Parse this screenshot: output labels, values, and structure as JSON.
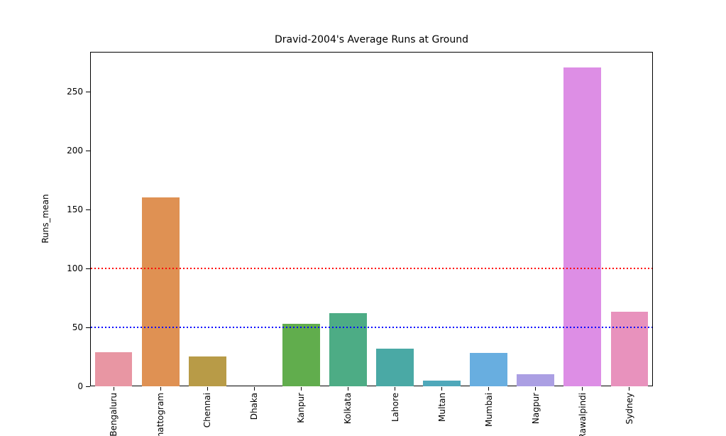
{
  "chart_data": {
    "type": "bar",
    "title": "Dravid-2004's Average Runs at Ground",
    "xlabel": "",
    "ylabel": "Runs_mean",
    "categories": [
      "Bengaluru",
      "Chattogram",
      "Chennai",
      "Dhaka",
      "Kanpur",
      "Kolkata",
      "Lahore",
      "Multan",
      "Mumbai",
      "Nagpur",
      "Rawalpindi",
      "Sydney"
    ],
    "values": [
      29,
      160,
      25,
      0,
      53,
      62,
      32,
      5,
      28,
      10,
      270,
      63
    ],
    "bar_colors": [
      "#e896a3",
      "#df9153",
      "#b89b47",
      "#a0a83f",
      "#61ad4d",
      "#4dac85",
      "#4aa9a5",
      "#4fa8ba",
      "#68aee0",
      "#ab9fe3",
      "#dd8ee5",
      "#e892bd"
    ],
    "yticks": [
      0,
      50,
      100,
      150,
      200,
      250
    ],
    "ylim": [
      0,
      283.5
    ],
    "reference_lines": [
      {
        "value": 100,
        "color": "#ff0000",
        "style": "dotted",
        "name": "red-dotted-line-100"
      },
      {
        "value": 50,
        "color": "#0000ff",
        "style": "dotted",
        "name": "blue-dotted-line-50"
      }
    ],
    "grid": false,
    "legend": false,
    "axis_color": "#000000",
    "background_color": "#ffffff"
  }
}
